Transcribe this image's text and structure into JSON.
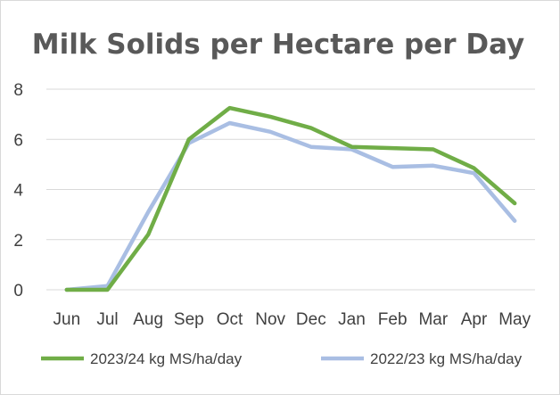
{
  "chart_data": {
    "type": "line",
    "title": "Milk Solids per Hectare per Day",
    "xlabel": "",
    "ylabel": "",
    "categories": [
      "Jun",
      "Jul",
      "Aug",
      "Sep",
      "Oct",
      "Nov",
      "Dec",
      "Jan",
      "Feb",
      "Mar",
      "Apr",
      "May"
    ],
    "ylim": [
      0,
      8
    ],
    "yticks": [
      0,
      2,
      4,
      6,
      8
    ],
    "grid": true,
    "legend": "bottom",
    "series": [
      {
        "name": "2023/24 kg MS/ha/day",
        "color": "#70ad47",
        "values": [
          0.0,
          0.0,
          2.2,
          6.0,
          7.25,
          6.9,
          6.45,
          5.7,
          5.65,
          5.6,
          4.85,
          3.45
        ]
      },
      {
        "name": "2022/23 kg MS/ha/day",
        "color": "#a9bee3",
        "values": [
          0.0,
          0.15,
          3.1,
          5.85,
          6.65,
          6.3,
          5.7,
          5.6,
          4.9,
          4.95,
          4.65,
          2.75
        ]
      }
    ]
  }
}
